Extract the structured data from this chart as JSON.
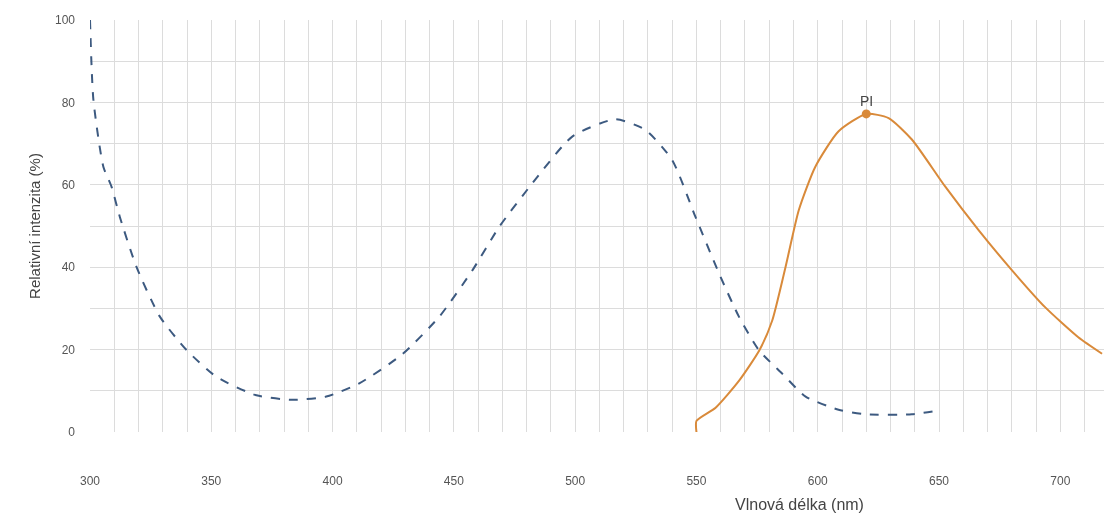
{
  "chart_data": {
    "type": "line",
    "xlabel": "Vlnová délka (nm)",
    "ylabel": "Relativní intenzita (%)",
    "xlim": [
      300,
      718
    ],
    "xticks": [
      300,
      350,
      400,
      450,
      500,
      550,
      600,
      650,
      700
    ],
    "ylim": [
      0,
      100
    ],
    "yticks": [
      0,
      20,
      40,
      60,
      80,
      100
    ],
    "grid": true,
    "annotations": [
      {
        "text": "PI",
        "x": 620,
        "y": 77
      }
    ],
    "series": [
      {
        "color": "#3d5a80",
        "line_style": "dashed",
        "marker": "none",
        "x": [
          300,
          301.4,
          305.5,
          308.9,
          312.3,
          319.2,
          328.8,
          339.8,
          352.1,
          368.6,
          383.6,
          397.4,
          411,
          428.8,
          444,
          457.7,
          468.7,
          482.4,
          498.8,
          516.6,
          529,
          540,
          549.6,
          559.3,
          567.5,
          575.7,
          585.3,
          595,
          608.6,
          619.6,
          638.8,
          648.4
        ],
        "values": [
          100,
          80.6,
          64.4,
          59.5,
          52.2,
          40,
          28,
          19.9,
          13.4,
          8.9,
          7.8,
          8.6,
          11.8,
          18.9,
          28,
          39.3,
          49.8,
          60.4,
          71.7,
          75.9,
          73.3,
          66,
          52.2,
          38.5,
          28,
          19.9,
          14.2,
          8.6,
          5.4,
          4.3,
          4.3,
          5.1
        ]
      },
      {
        "color": "#d98a3a",
        "line_style": "solid",
        "marker": "none",
        "x": [
          550,
          550,
          557.9,
          567.5,
          576,
          581.2,
          586.7,
          592.2,
          599,
          608.6,
          620,
          629.2,
          638.8,
          652.5,
          666.3,
          680,
          693.7,
          707.4,
          717.2
        ],
        "values": [
          0,
          2.7,
          5.9,
          12.4,
          19.9,
          27,
          40,
          53.9,
          64.4,
          73,
          77.2,
          76.2,
          71,
          59.6,
          49,
          39.3,
          30.3,
          23,
          19
        ]
      },
      {
        "type": "scatter",
        "color": "#d98a3a",
        "marker": "circle",
        "x": [
          620
        ],
        "values": [
          77.2
        ]
      }
    ]
  }
}
